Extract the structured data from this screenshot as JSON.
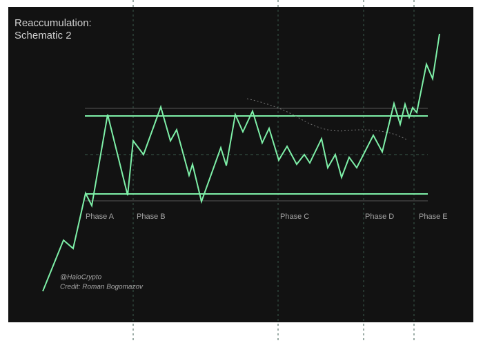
{
  "title": [
    "Reaccumulation:",
    "Schematic 2"
  ],
  "phases": [
    "Phase A",
    "Phase B",
    "Phase C",
    "Phase D",
    "Phase E"
  ],
  "credits": [
    "@HaloCrypto",
    "Credit: Roman Bogomazov"
  ]
}
